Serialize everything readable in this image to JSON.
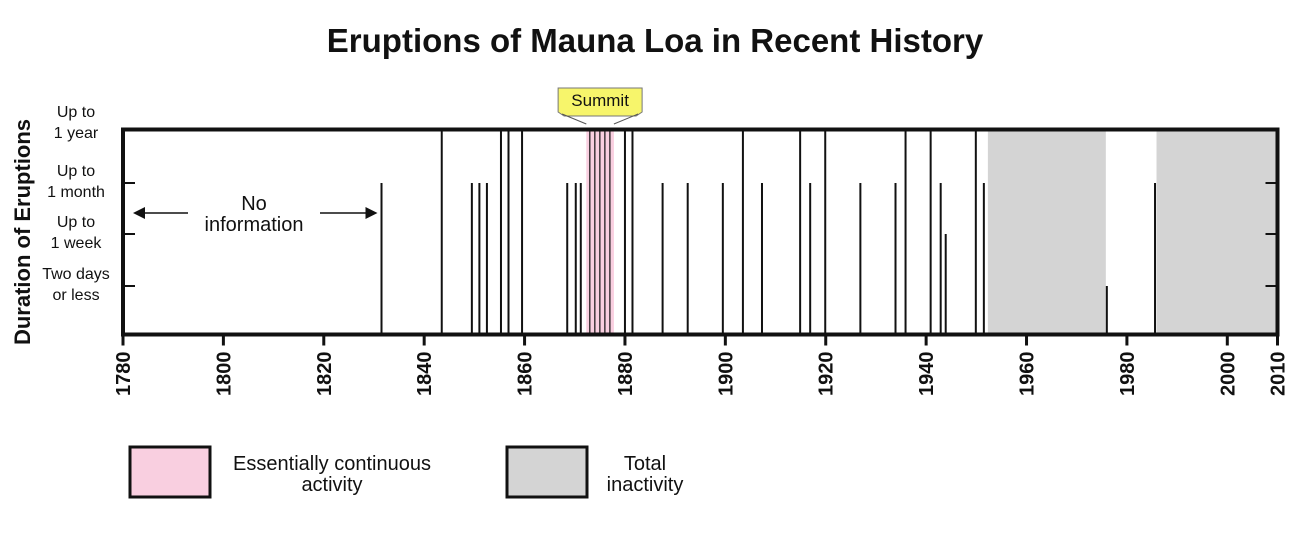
{
  "chart_data": {
    "type": "bar",
    "title": "Eruptions of Mauna Loa in Recent History",
    "ylabel": "Duration of Eruptions",
    "xlim": [
      1780,
      2010
    ],
    "x_ticks": [
      1780,
      1800,
      1820,
      1840,
      1860,
      1880,
      1900,
      1920,
      1940,
      1960,
      1980,
      2000,
      2010
    ],
    "y_levels": [
      {
        "value": 1,
        "label": [
          "Two days",
          "or less"
        ]
      },
      {
        "value": 2,
        "label": [
          "Up to",
          "1 week"
        ]
      },
      {
        "value": 3,
        "label": [
          "Up to",
          "1 month"
        ]
      },
      {
        "value": 4,
        "label": [
          "Up to",
          "1 year"
        ]
      }
    ],
    "eruptions": [
      {
        "year": 1831.5,
        "duration": 3
      },
      {
        "year": 1843.5,
        "duration": 4
      },
      {
        "year": 1849.5,
        "duration": 3
      },
      {
        "year": 1851,
        "duration": 3
      },
      {
        "year": 1852.5,
        "duration": 3
      },
      {
        "year": 1855.3,
        "duration": 4
      },
      {
        "year": 1856.8,
        "duration": 4
      },
      {
        "year": 1859.5,
        "duration": 4
      },
      {
        "year": 1868.5,
        "duration": 3
      },
      {
        "year": 1870.2,
        "duration": 3
      },
      {
        "year": 1871.2,
        "duration": 3
      },
      {
        "year": 1880,
        "duration": 4
      },
      {
        "year": 1881.5,
        "duration": 4
      },
      {
        "year": 1887.5,
        "duration": 3
      },
      {
        "year": 1892.5,
        "duration": 3
      },
      {
        "year": 1899.5,
        "duration": 3
      },
      {
        "year": 1903.5,
        "duration": 4
      },
      {
        "year": 1907.3,
        "duration": 3
      },
      {
        "year": 1914.9,
        "duration": 4
      },
      {
        "year": 1916.9,
        "duration": 3
      },
      {
        "year": 1919.9,
        "duration": 4
      },
      {
        "year": 1926.9,
        "duration": 3
      },
      {
        "year": 1933.9,
        "duration": 3
      },
      {
        "year": 1935.9,
        "duration": 4
      },
      {
        "year": 1940.9,
        "duration": 4
      },
      {
        "year": 1942.9,
        "duration": 3
      },
      {
        "year": 1943.9,
        "duration": 2
      },
      {
        "year": 1949.9,
        "duration": 4
      },
      {
        "year": 1951.5,
        "duration": 3
      },
      {
        "year": 1976,
        "duration": 1
      },
      {
        "year": 1985.6,
        "duration": 3
      }
    ],
    "continuous_activity": [
      {
        "start": 1872.3,
        "end": 1877.8
      }
    ],
    "inactivity": [
      {
        "start": 1952.3,
        "end": 1975.8
      },
      {
        "start": 1985.9,
        "end": 2010
      }
    ],
    "annotations": {
      "no_info": {
        "line1": "No",
        "line2": "information",
        "from": 1780,
        "to": 1831.5
      },
      "summit": {
        "label": "Summit"
      }
    },
    "legend": [
      {
        "label_lines": [
          "Essentially continuous",
          "activity"
        ],
        "color": "#f9cfe0"
      },
      {
        "label_lines": [
          "Total",
          "inactivity"
        ],
        "color": "#d4d4d4"
      }
    ],
    "colors": {
      "continuous": "#f9cfe0",
      "inactivity": "#d4d4d4",
      "summit_box": "#f7f56b",
      "line": "#111111"
    }
  }
}
